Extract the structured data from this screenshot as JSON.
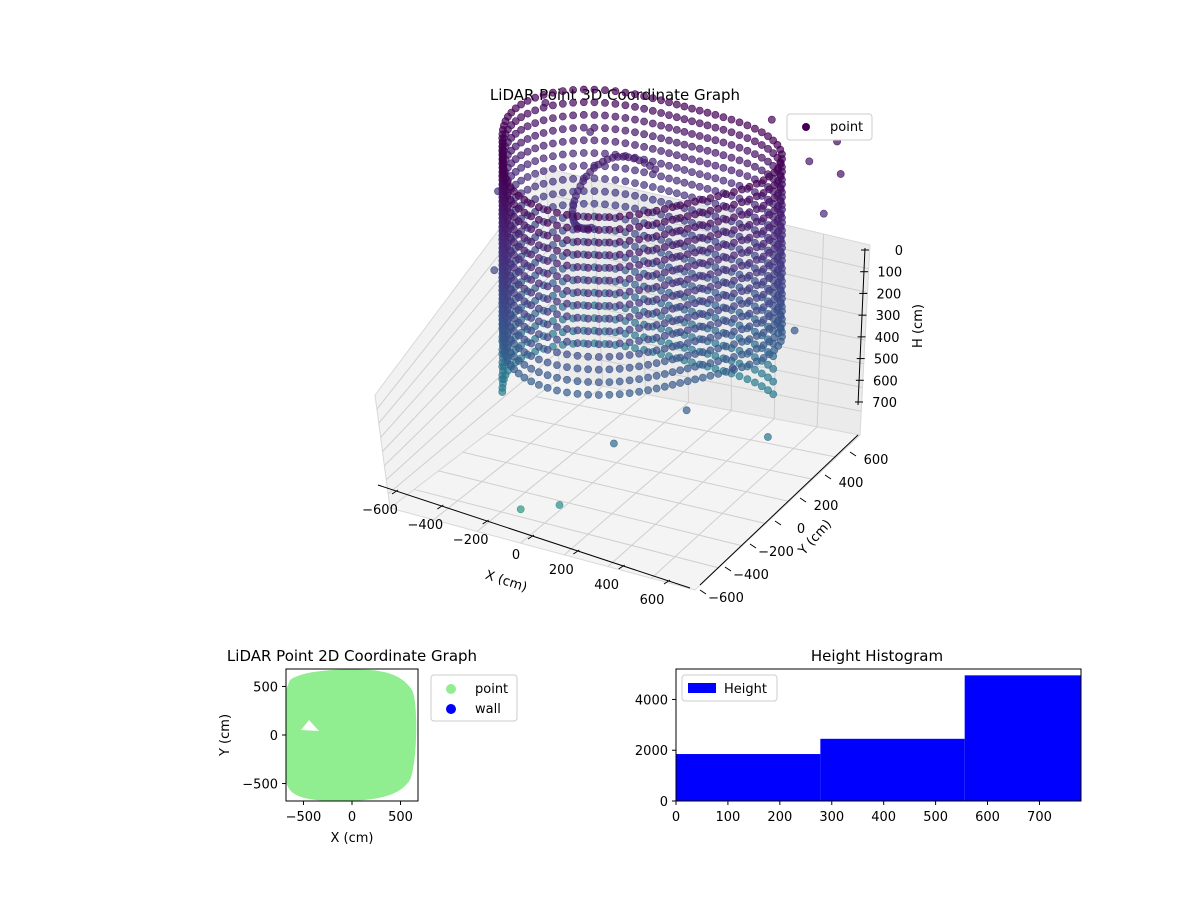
{
  "chart_data": [
    {
      "type": "scatter",
      "projection": "3d",
      "title": "LiDAR Point 3D Coordinate Graph",
      "xlabel": "X (cm)",
      "ylabel": "Y (cm)",
      "zlabel": "H (cm)",
      "xlim": [
        -700,
        700
      ],
      "ylim": [
        -700,
        700
      ],
      "zlim": [
        0,
        780
      ],
      "z_inverted": true,
      "x_ticks": [
        "−600",
        "−400",
        "−200",
        "0",
        "200",
        "400",
        "600"
      ],
      "y_ticks": [
        "−600",
        "−400",
        "−200",
        "0",
        "200",
        "400",
        "600"
      ],
      "z_ticks": [
        "0",
        "100",
        "200",
        "300",
        "400",
        "500",
        "600",
        "700"
      ],
      "grid": true,
      "colormap": "viridis",
      "legend": {
        "placement": "top-right",
        "entries": [
          {
            "label": "point",
            "color": "#440154"
          }
        ]
      },
      "series": [
        {
          "name": "point",
          "description_note": "dense ring of wall points sampled around the room, heights 0-700 cm",
          "points": [
            [
              -650,
              100,
              200
            ],
            [
              -600,
              400,
              50
            ],
            [
              -450,
              500,
              120
            ],
            [
              -500,
              -200,
              300
            ],
            [
              300,
              650,
              20
            ],
            [
              500,
              600,
              80
            ],
            [
              650,
              450,
              150
            ],
            [
              600,
              650,
              30
            ],
            [
              700,
              500,
              60
            ],
            [
              650,
              -300,
              350
            ],
            [
              550,
              -500,
              420
            ],
            [
              300,
              -650,
              500
            ],
            [
              -100,
              -700,
              700
            ],
            [
              50,
              -650,
              680
            ],
            [
              600,
              300,
              400
            ],
            [
              700,
              -100,
              550
            ]
          ]
        }
      ]
    },
    {
      "type": "scatter",
      "title": "LiDAR Point 2D Coordinate Graph",
      "xlabel": "X (cm)",
      "ylabel": "Y (cm)",
      "xlim": [
        -680,
        680
      ],
      "ylim": [
        -680,
        680
      ],
      "x_ticks": [
        "−500",
        "0",
        "500"
      ],
      "y_ticks": [
        "−500",
        "0",
        "500"
      ],
      "legend": {
        "placement": "outside-right",
        "entries": [
          {
            "label": "point",
            "color": "#90ee90"
          },
          {
            "label": "wall",
            "color": "#0000ff"
          }
        ]
      }
    },
    {
      "type": "bar",
      "title": "Height Histogram",
      "bins": [
        [
          0,
          278
        ],
        [
          278,
          556
        ],
        [
          556,
          780
        ]
      ],
      "values": [
        1850,
        2450,
        4950
      ],
      "color": "#0000ff",
      "xlim": [
        0,
        780
      ],
      "ylim": [
        0,
        5200
      ],
      "x_ticks": [
        "0",
        "100",
        "200",
        "300",
        "400",
        "500",
        "600",
        "700"
      ],
      "y_ticks": [
        "0",
        "2000",
        "4000"
      ],
      "legend": {
        "placement": "top-left",
        "entries": [
          {
            "label": "Height",
            "color": "#0000ff"
          }
        ]
      }
    }
  ]
}
